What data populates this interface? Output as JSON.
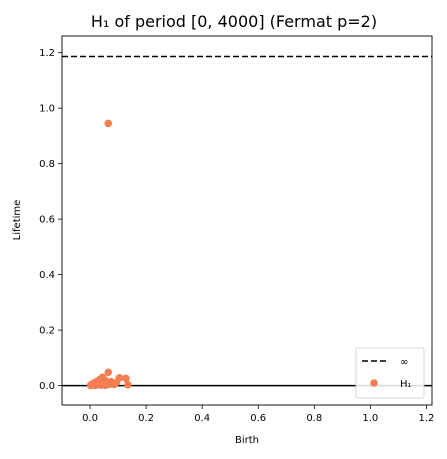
{
  "chart_data": {
    "type": "scatter",
    "title": "H₁ of period [0, 4000]  (Fermat p=2)",
    "xlabel": "Birth",
    "ylabel": "Lifetime",
    "xlim": [
      -0.1,
      1.22
    ],
    "ylim": [
      -0.07,
      1.26
    ],
    "x_ticks": [
      "0.0",
      "0.2",
      "0.4",
      "0.6",
      "0.8",
      "1.0",
      "1.2"
    ],
    "y_ticks": [
      "0.0",
      "0.2",
      "0.4",
      "0.6",
      "0.8",
      "1.0",
      "1.2"
    ],
    "infinity_line": 1.186,
    "zero_line": 0,
    "grid": false,
    "legend_position": "bottom-right",
    "legend": [
      {
        "label": "∞",
        "style": "dashed-line",
        "color": "#000000"
      },
      {
        "label": "H₁",
        "style": "point",
        "color": "#f47e52"
      }
    ],
    "series": [
      {
        "name": "H₁",
        "color": "#f47e52",
        "points": [
          [
            0.065,
            0.945
          ],
          [
            0.065,
            0.048
          ],
          [
            0.045,
            0.03
          ],
          [
            0.105,
            0.028
          ],
          [
            0.128,
            0.026
          ],
          [
            0.035,
            0.022
          ],
          [
            0.055,
            0.018
          ],
          [
            0.025,
            0.015
          ],
          [
            0.075,
            0.014
          ],
          [
            0.095,
            0.012
          ],
          [
            0.04,
            0.012
          ],
          [
            0.015,
            0.01
          ],
          [
            0.05,
            0.01
          ],
          [
            0.03,
            0.008
          ],
          [
            0.02,
            0.007
          ],
          [
            0.06,
            0.006
          ],
          [
            0.01,
            0.005
          ],
          [
            0.07,
            0.005
          ],
          [
            0.085,
            0.004
          ],
          [
            0.005,
            0.004
          ],
          [
            0.045,
            0.003
          ],
          [
            0.025,
            0.003
          ],
          [
            0.135,
            0.003
          ],
          [
            0.038,
            0.002
          ],
          [
            0.012,
            0.002
          ],
          [
            0.002,
            0.001
          ],
          [
            0.055,
            0.001
          ],
          [
            0.018,
            0.001
          ]
        ]
      }
    ]
  }
}
